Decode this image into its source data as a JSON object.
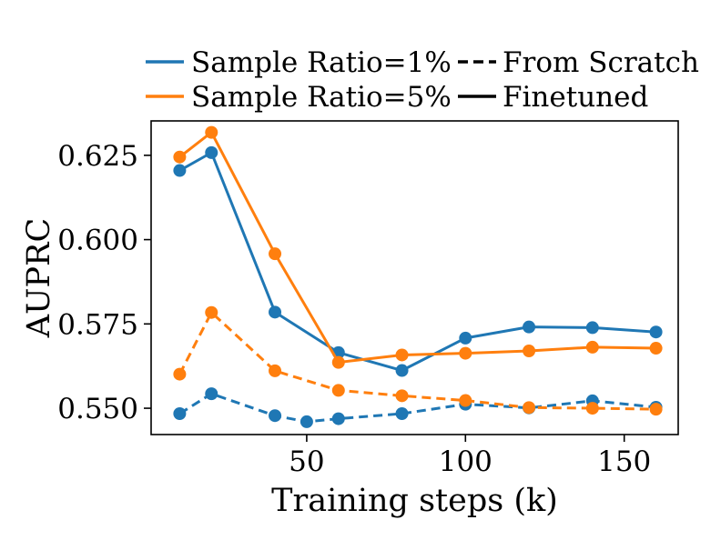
{
  "chart_data": {
    "type": "line",
    "title": "",
    "xlabel": "Training steps (k)",
    "ylabel": "AUPRC",
    "xlim": [
      1,
      167
    ],
    "ylim": [
      0.5422,
      0.6352
    ],
    "x_ticks": [
      50,
      100,
      150
    ],
    "x_tick_labels": [
      "50",
      "100",
      "150"
    ],
    "y_ticks": [
      0.55,
      0.575,
      0.6,
      0.625
    ],
    "y_tick_labels": [
      "0.550",
      "0.575",
      "0.600",
      "0.625"
    ],
    "grid": false,
    "legend_placement": "above plot",
    "x": [
      10,
      20,
      40,
      50,
      60,
      80,
      100,
      120,
      140,
      160
    ],
    "series": [
      {
        "name": "Sample Ratio=1%",
        "style": "Finetuned",
        "color": "#1f77b4",
        "linestyle": "solid",
        "x": [
          10,
          20,
          40,
          60,
          80,
          100,
          120,
          140,
          160
        ],
        "values": [
          0.6205,
          0.6258,
          0.5785,
          0.5665,
          0.5612,
          0.5708,
          0.5741,
          0.5739,
          0.5726
        ]
      },
      {
        "name": "Sample Ratio=5%",
        "style": "Finetuned",
        "color": "#ff7f0e",
        "linestyle": "solid",
        "x": [
          10,
          20,
          40,
          60,
          80,
          100,
          120,
          140,
          160
        ],
        "values": [
          0.6245,
          0.6318,
          0.5958,
          0.5636,
          0.5658,
          0.5663,
          0.567,
          0.5681,
          0.5678
        ]
      },
      {
        "name": "Sample Ratio=1%",
        "style": "From Scratch",
        "color": "#1f77b4",
        "linestyle": "dashed",
        "x": [
          10,
          20,
          40,
          50,
          60,
          80,
          100,
          120,
          140,
          160
        ],
        "values": [
          0.5484,
          0.5543,
          0.5478,
          0.546,
          0.5469,
          0.5484,
          0.5512,
          0.5501,
          0.5522,
          0.5503
        ]
      },
      {
        "name": "Sample Ratio=5%",
        "style": "From Scratch",
        "color": "#ff7f0e",
        "linestyle": "dashed",
        "x": [
          10,
          20,
          40,
          60,
          80,
          100,
          120,
          140,
          160
        ],
        "values": [
          0.5601,
          0.5784,
          0.5611,
          0.5553,
          0.5537,
          0.5523,
          0.5502,
          0.55,
          0.5497
        ]
      }
    ],
    "legend": {
      "color_entries": [
        {
          "label": "Sample Ratio=1%",
          "color": "#1f77b4"
        },
        {
          "label": "Sample Ratio=5%",
          "color": "#ff7f0e"
        }
      ],
      "style_entries": [
        {
          "label": "From Scratch",
          "linestyle": "dashed"
        },
        {
          "label": "Finetuned",
          "linestyle": "solid"
        }
      ]
    }
  }
}
